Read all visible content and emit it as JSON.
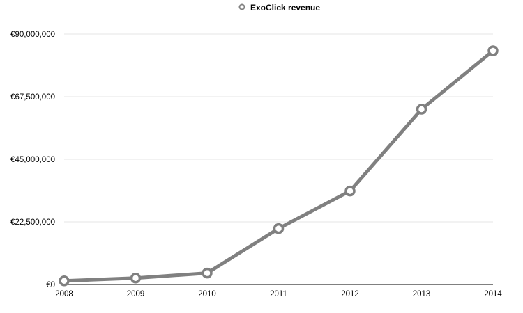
{
  "chart_data": {
    "type": "line",
    "title": "",
    "xlabel": "",
    "ylabel": "",
    "categories": [
      "2008",
      "2009",
      "2010",
      "2011",
      "2012",
      "2013",
      "2014"
    ],
    "series": [
      {
        "name": "ExoClick revenue",
        "values": [
          1300000,
          2300000,
          4100000,
          20100000,
          33600000,
          63000000,
          84000000
        ]
      }
    ],
    "y_ticks": [
      0,
      22500000,
      45000000,
      67500000,
      90000000
    ],
    "y_tick_labels": [
      "€0",
      "€22,500,000",
      "€45,000,000",
      "€67,500,000",
      "€90,000,000"
    ],
    "ylim": [
      0,
      90000000
    ],
    "grid": true,
    "legend": "top-center",
    "colors": {
      "series": "#808080",
      "grid": "#e6e6e6",
      "axis": "#000000",
      "marker_fill": "#ffffff"
    }
  }
}
